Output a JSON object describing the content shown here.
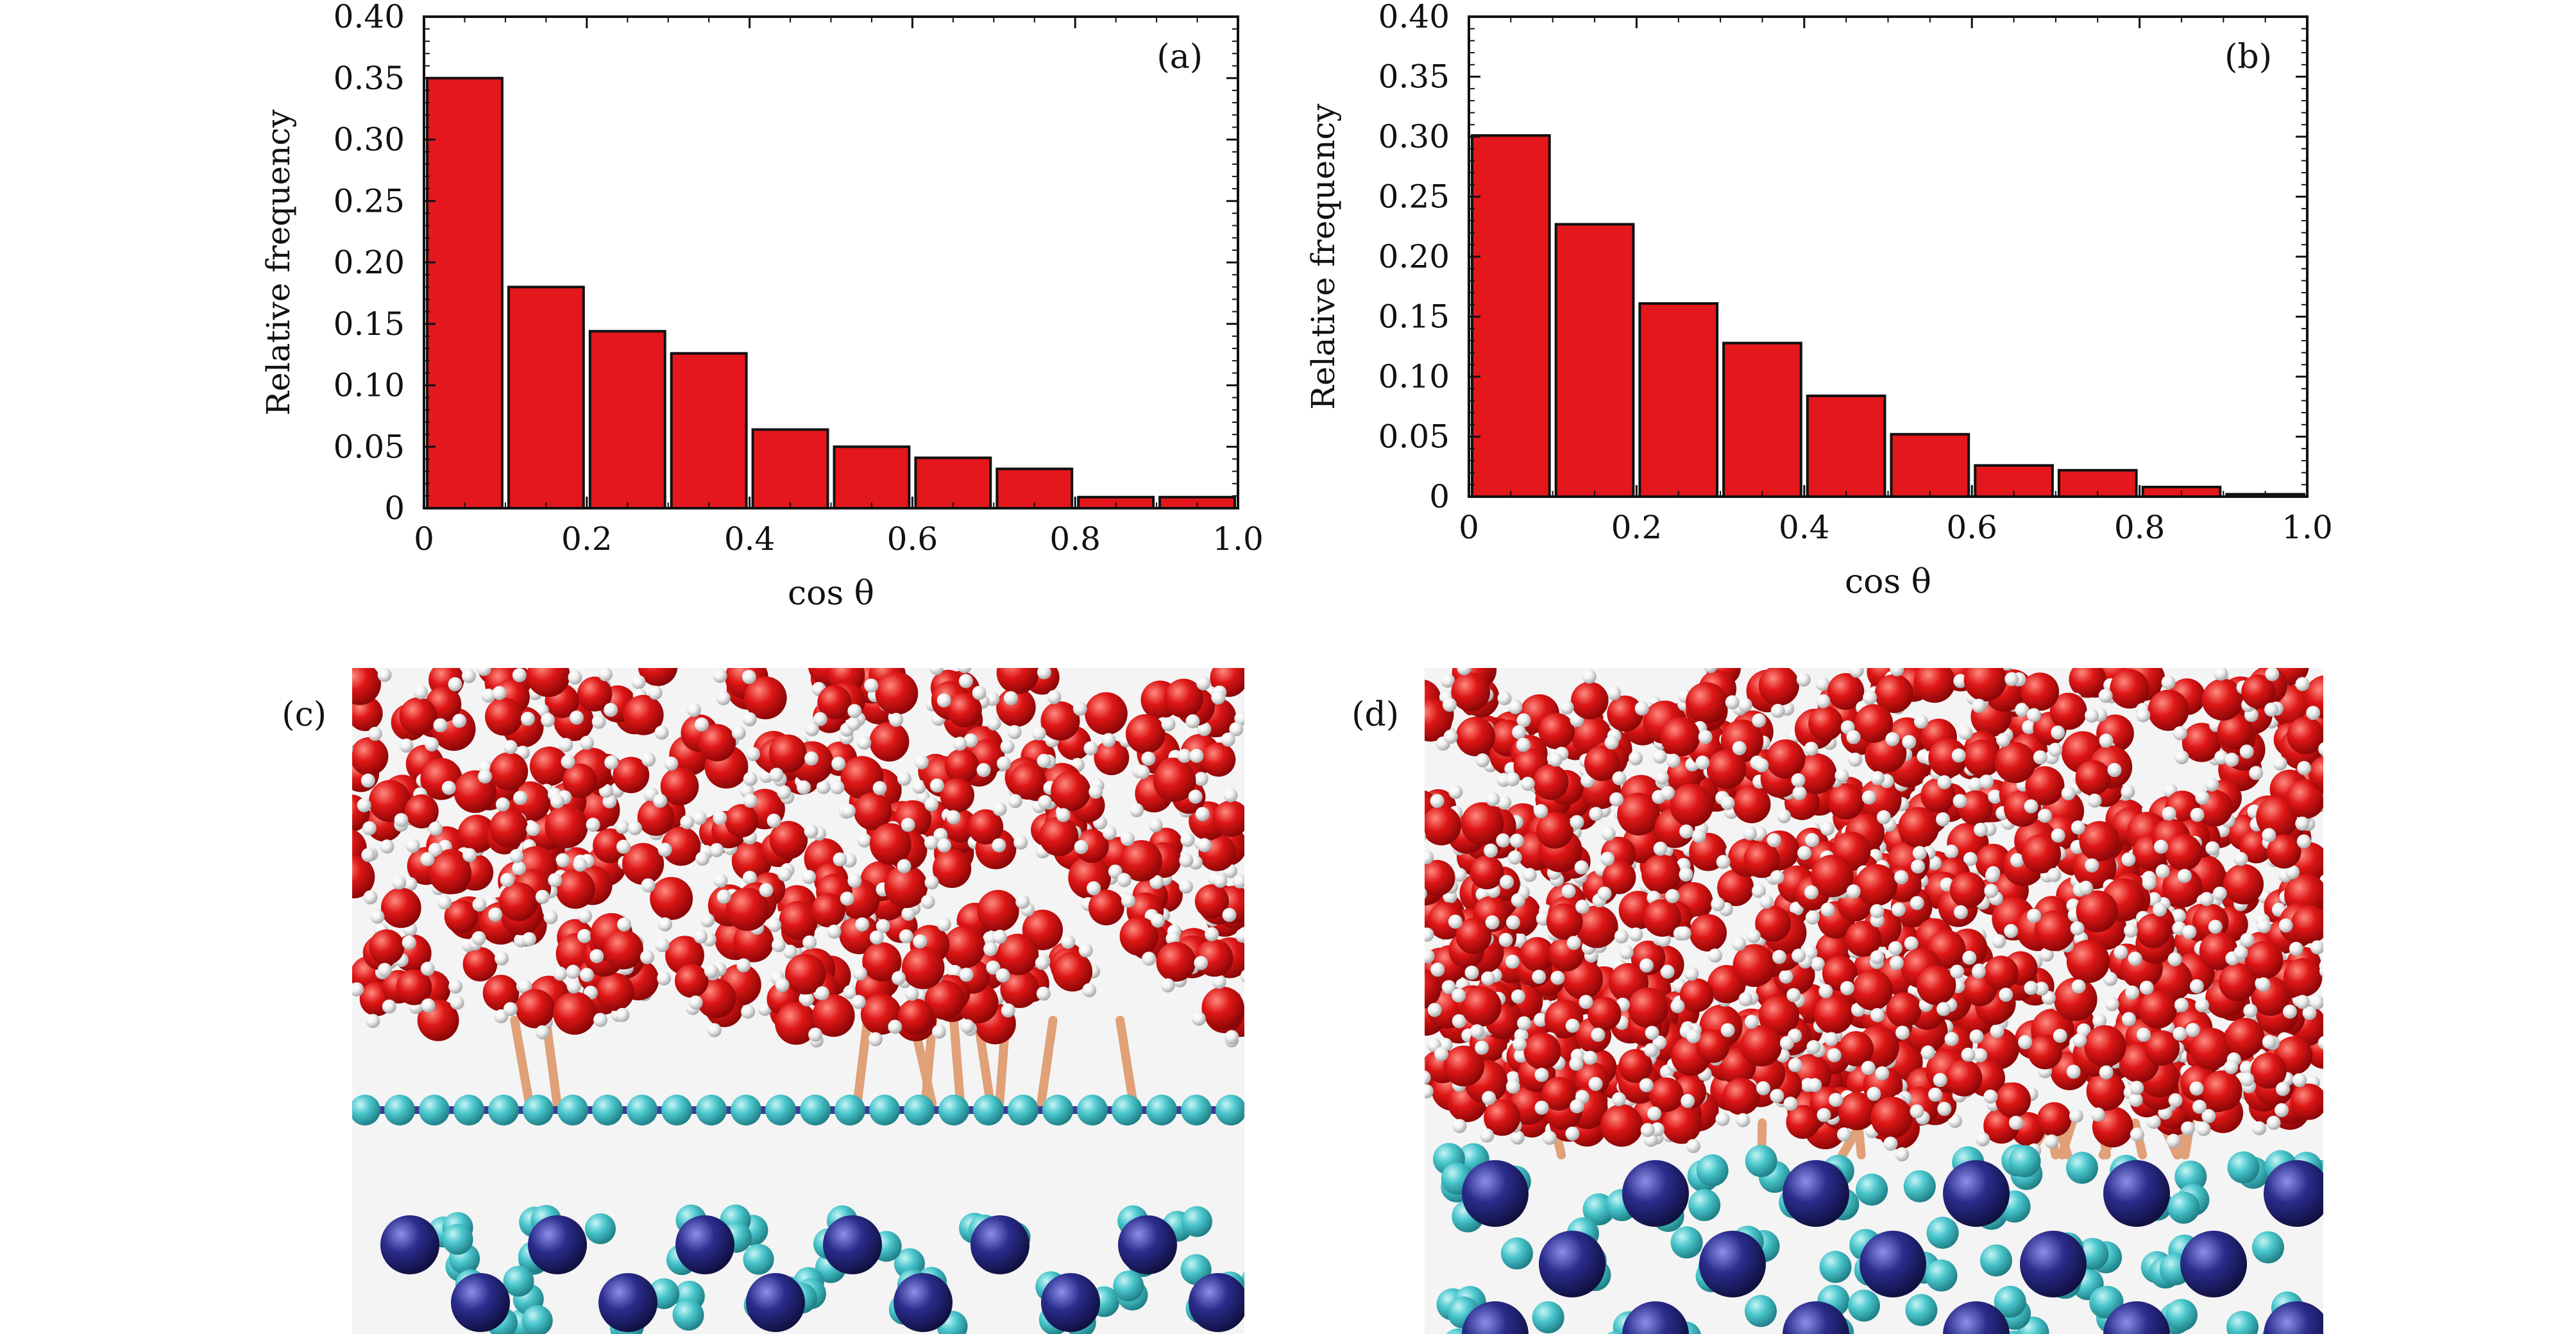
{
  "colors": {
    "bar_fill": "#e3171c",
    "bar_stroke": "#111111",
    "background": "#ffffff",
    "image_background": "#f4f4f4",
    "oxygen": "#de1616",
    "hydrogen": "#f2f2f2",
    "bond": "#e0a078",
    "surface_light": "#49c6cc",
    "surface_dark": "#2a2c8c",
    "surface_line": "#3b3a96"
  },
  "chart_data": [
    {
      "type": "bar",
      "panel_label": "(a)",
      "x": [
        0.05,
        0.15,
        0.25,
        0.35,
        0.45,
        0.55,
        0.65,
        0.75,
        0.85,
        0.95
      ],
      "values": [
        0.35,
        0.18,
        0.144,
        0.126,
        0.064,
        0.05,
        0.041,
        0.032,
        0.009,
        0.009
      ],
      "xlabel": "cos θ",
      "ylabel": "Relative frequency",
      "xlim": [
        0,
        1.0
      ],
      "ylim": [
        0,
        0.4
      ],
      "xticks": [
        "0",
        "0.2",
        "0.4",
        "0.6",
        "0.8",
        "1.0"
      ],
      "yticks": [
        "0",
        "0.05",
        "0.10",
        "0.15",
        "0.20",
        "0.25",
        "0.30",
        "0.35",
        "0.40"
      ],
      "grid": false
    },
    {
      "type": "bar",
      "panel_label": "(b)",
      "x": [
        0.05,
        0.15,
        0.25,
        0.35,
        0.45,
        0.55,
        0.65,
        0.75,
        0.85,
        0.95
      ],
      "values": [
        0.301,
        0.227,
        0.161,
        0.128,
        0.084,
        0.052,
        0.026,
        0.022,
        0.008,
        0.002
      ],
      "xlabel": "cos θ",
      "ylabel": "Relative frequency",
      "xlim": [
        0,
        1.0
      ],
      "ylim": [
        0,
        0.4
      ],
      "xticks": [
        "0",
        "0.2",
        "0.4",
        "0.6",
        "0.8",
        "1.0"
      ],
      "yticks": [
        "0",
        "0.05",
        "0.10",
        "0.15",
        "0.20",
        "0.25",
        "0.30",
        "0.35",
        "0.40"
      ],
      "grid": false
    }
  ],
  "images": [
    {
      "panel_label": "(c)",
      "content": "molecular-snapshot"
    },
    {
      "panel_label": "(d)",
      "content": "molecular-snapshot"
    }
  ]
}
